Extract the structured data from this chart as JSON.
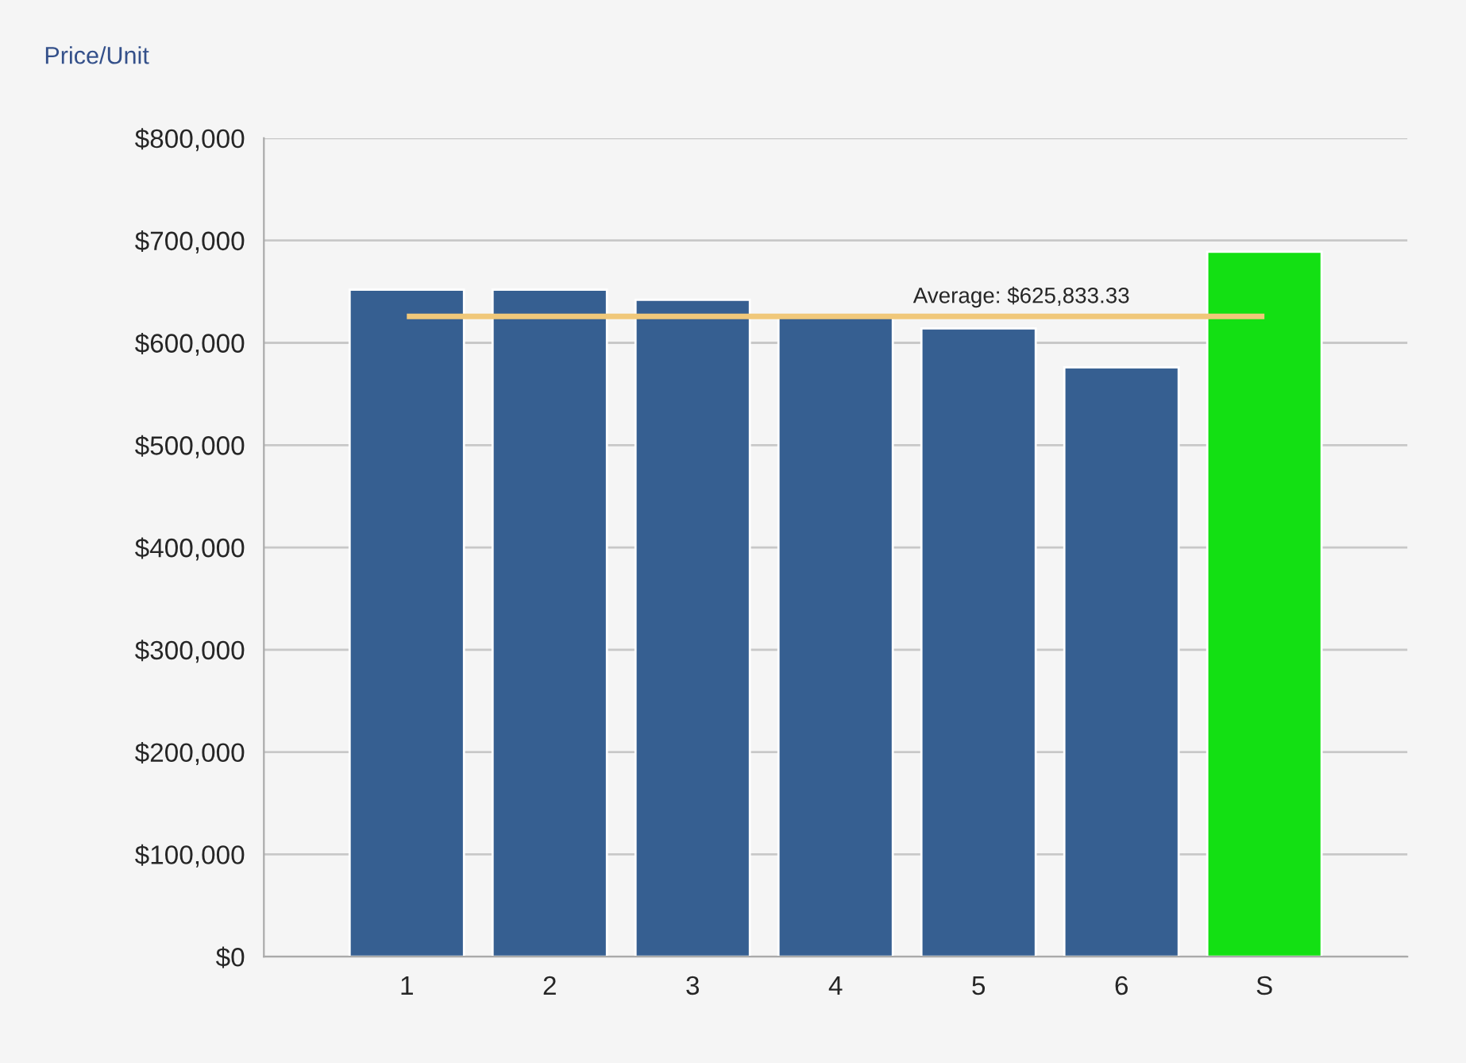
{
  "chart_data": {
    "type": "bar",
    "ylabel": "Price/Unit",
    "categories": [
      "1",
      "2",
      "3",
      "4",
      "5",
      "6",
      "S"
    ],
    "values": [
      652000,
      652000,
      642000,
      625000,
      614000,
      576000,
      689000
    ],
    "colors": [
      "#365f91",
      "#365f91",
      "#365f91",
      "#365f91",
      "#365f91",
      "#365f91",
      "#13e013"
    ],
    "ylim": [
      0,
      800000
    ],
    "yticks": [
      {
        "value": 0,
        "label": "$0"
      },
      {
        "value": 100000,
        "label": "$100,000"
      },
      {
        "value": 200000,
        "label": "$200,000"
      },
      {
        "value": 300000,
        "label": "$300,000"
      },
      {
        "value": 400000,
        "label": "$400,000"
      },
      {
        "value": 500000,
        "label": "$500,000"
      },
      {
        "value": 600000,
        "label": "$600,000"
      },
      {
        "value": 700000,
        "label": "$700,000"
      },
      {
        "value": 800000,
        "label": "$800,000"
      }
    ],
    "grid": "y",
    "legend": false,
    "ref_lines": [
      {
        "axis": "y",
        "value": 625833.33,
        "label": "Average: $625,833.33",
        "color": "#f0c87a"
      }
    ]
  }
}
